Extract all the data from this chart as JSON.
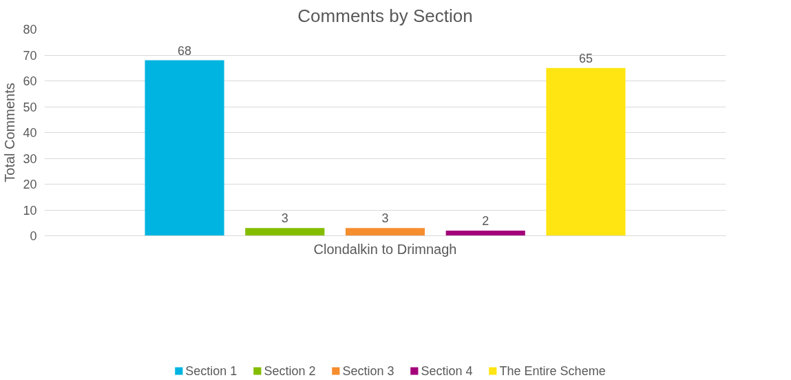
{
  "chart_data": {
    "type": "bar",
    "title": "Comments by Section",
    "xlabel": "Clondalkin to Drimnagh",
    "ylabel": "Total Comments",
    "categories": [
      null
    ],
    "series": [
      {
        "name": "Section 1",
        "color": "#00b4e1",
        "values": [
          68
        ]
      },
      {
        "name": "Section 2",
        "color": "#84bd00",
        "values": [
          3
        ]
      },
      {
        "name": "Section 3",
        "color": "#f68d2e",
        "values": [
          3
        ]
      },
      {
        "name": "Section 4",
        "color": "#a3007a",
        "values": [
          2
        ]
      },
      {
        "name": "The Entire Scheme",
        "color": "#ffe512",
        "values": [
          65
        ]
      }
    ],
    "ylim": [
      0,
      80
    ],
    "yticks": [
      0,
      10,
      20,
      30,
      40,
      50,
      60,
      70,
      80
    ],
    "grid": "y",
    "legend": "bottom",
    "data_labels": true
  }
}
